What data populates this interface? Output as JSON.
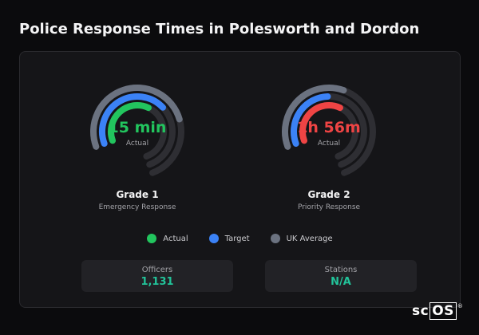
{
  "title": "Police Response Times in Polesworth and Dordon",
  "colors": {
    "actual": "#22c55e",
    "target": "#3b82f6",
    "uk_average": "#6b7280",
    "breach": "#ef4444",
    "stat_value": "#22c39a"
  },
  "gauges": [
    {
      "value": "15 min",
      "sub": "Actual",
      "name": "Grade 1",
      "desc": "Emergency Response",
      "actual_fraction": 0.5,
      "target_fraction": 0.58,
      "uk_fraction": 0.68,
      "actual_color": "#22c55e",
      "value_color": "#22c55e"
    },
    {
      "value": "1h 56m",
      "sub": "Actual",
      "name": "Grade 2",
      "desc": "Priority Response",
      "actual_fraction": 0.5,
      "target_fraction": 0.4,
      "uk_fraction": 0.48,
      "actual_color": "#ef4444",
      "value_color": "#ef4444"
    }
  ],
  "legend": [
    {
      "label": "Actual",
      "color": "#22c55e"
    },
    {
      "label": "Target",
      "color": "#3b82f6"
    },
    {
      "label": "UK Average",
      "color": "#6b7280"
    }
  ],
  "stats": [
    {
      "label": "Officers",
      "value": "1,131"
    },
    {
      "label": "Stations",
      "value": "N/A"
    }
  ],
  "logo": {
    "text_a": "sc",
    "text_b": "OS",
    "mark": "®"
  }
}
